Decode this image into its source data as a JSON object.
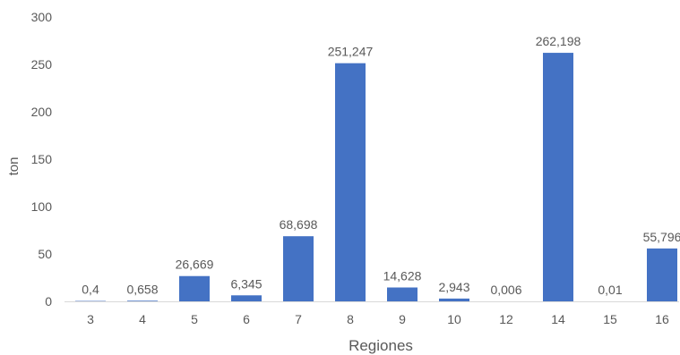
{
  "chart_data": {
    "type": "bar",
    "title": "",
    "xlabel": "Regiones",
    "ylabel": "ton",
    "categories": [
      "3",
      "4",
      "5",
      "6",
      "7",
      "8",
      "9",
      "10",
      "12",
      "14",
      "15",
      "16"
    ],
    "values": [
      0.4,
      0.658,
      26.669,
      6.345,
      68.698,
      251.247,
      14.628,
      2.943,
      0.006,
      262.198,
      0.01,
      55.796
    ],
    "data_labels": [
      "0,4",
      "0,658",
      "26,669",
      "6,345",
      "68,698",
      "251,247",
      "14,628",
      "2,943",
      "0,006",
      "262,198",
      "0,01",
      "55,796"
    ],
    "ylim": [
      0,
      300
    ],
    "yticks": [
      0,
      50,
      100,
      150,
      200,
      250,
      300
    ],
    "grid": false,
    "legend": "none",
    "colors": {
      "bar": "#4472C4",
      "text": "#595959",
      "axis": "#D9D9D9"
    }
  }
}
